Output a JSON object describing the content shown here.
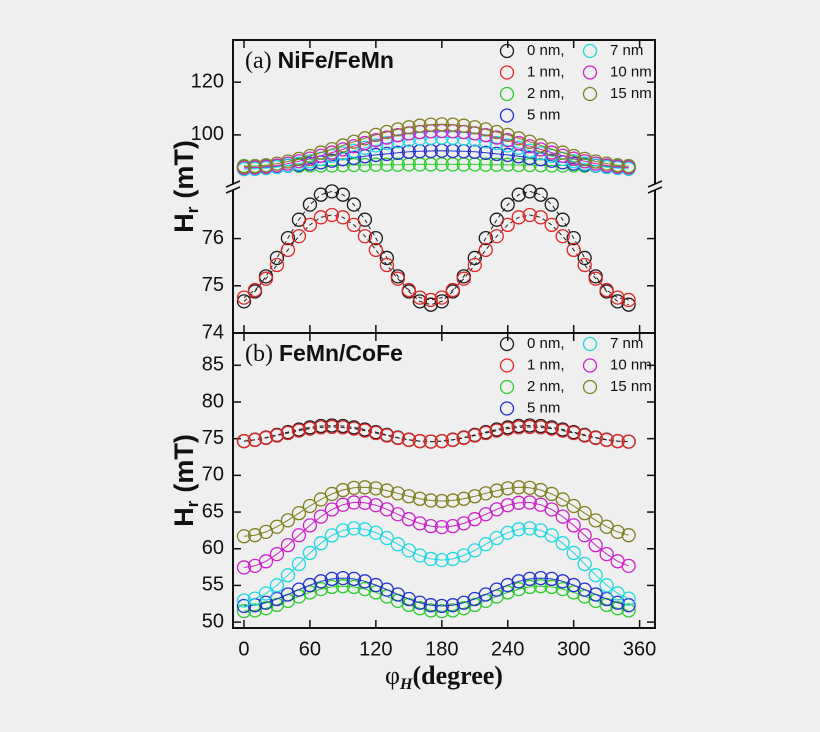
{
  "chart_data": [
    {
      "type": "scatter",
      "label": "(a)",
      "title": "NiFe/FeMn",
      "ylabel": {
        "text": "H",
        "sub": "r",
        "unit": "(mT)"
      },
      "x": [
        0,
        10,
        20,
        30,
        40,
        50,
        60,
        70,
        80,
        90,
        100,
        110,
        120,
        130,
        140,
        150,
        160,
        170,
        180,
        190,
        200,
        210,
        220,
        230,
        240,
        250,
        260,
        270,
        280,
        290,
        300,
        310,
        320,
        330,
        340,
        350
      ],
      "xlim": [
        -10,
        374
      ],
      "xticks": [
        0,
        60,
        120,
        180,
        240,
        300,
        360
      ],
      "ylim": [
        74,
        77.05
      ],
      "yticks": [
        74,
        75,
        76
      ],
      "y2lim": [
        81,
        136
      ],
      "y2ticks": [
        100,
        120
      ],
      "axis_break": true,
      "legend": "upper right",
      "series": [
        {
          "name": "0 nm,",
          "color": "#1a1a1a",
          "values": [
            74.67,
            74.88,
            75.2,
            75.59,
            76.01,
            76.4,
            76.72,
            76.93,
            77,
            76.93,
            76.72,
            76.4,
            76.01,
            75.59,
            75.2,
            74.88,
            74.67,
            74.6,
            74.67,
            74.88,
            75.2,
            75.59,
            76.01,
            76.4,
            76.72,
            76.93,
            77,
            76.93,
            76.72,
            76.4,
            76.01,
            75.59,
            75.2,
            74.88,
            74.67,
            74.6
          ]
        },
        {
          "name": "1 nm,",
          "color": "#e02828",
          "values": [
            74.75,
            74.91,
            75.15,
            75.44,
            75.76,
            76.05,
            76.29,
            76.45,
            76.5,
            76.45,
            76.29,
            76.05,
            75.76,
            75.44,
            75.15,
            74.91,
            74.75,
            74.7,
            74.75,
            74.91,
            75.15,
            75.44,
            75.76,
            76.05,
            76.29,
            76.45,
            76.5,
            76.45,
            76.29,
            76.05,
            75.76,
            75.44,
            75.15,
            74.91,
            74.75,
            74.7
          ]
        },
        {
          "name": "2 nm,",
          "color": "#2ecc2e",
          "axis": "y2",
          "values": [
            88.2,
            88.2,
            88.2,
            88.2,
            88.3,
            88.3,
            88.4,
            88.4,
            88.4,
            88.5,
            88.6,
            88.6,
            88.7,
            88.7,
            88.7,
            88.8,
            88.8,
            88.8,
            88.8,
            88.8,
            88.8,
            88.8,
            88.7,
            88.7,
            88.7,
            88.6,
            88.6,
            88.5,
            88.4,
            88.4,
            88.4,
            88.3,
            88.3,
            88.2,
            88.2,
            88.2
          ]
        },
        {
          "name": "5 nm",
          "color": "#2233cc",
          "axis": "y2",
          "values": [
            87.5,
            87.6,
            87.7,
            87.9,
            88.3,
            88.7,
            89.1,
            89.6,
            90.2,
            90.8,
            91.3,
            91.9,
            92.4,
            92.8,
            93.2,
            93.6,
            93.8,
            93.9,
            94,
            93.9,
            93.8,
            93.6,
            93.2,
            92.8,
            92.4,
            91.9,
            91.3,
            90.8,
            90.2,
            89.6,
            89.1,
            88.7,
            88.3,
            87.9,
            87.7,
            87.6
          ]
        },
        {
          "name": "7 nm",
          "color": "#22d8e0",
          "axis": "y2",
          "values": [
            87,
            87.1,
            87.4,
            87.8,
            88.4,
            89.1,
            90,
            90.9,
            92,
            93,
            94,
            95.1,
            96,
            96.9,
            97.6,
            98.2,
            98.6,
            98.9,
            99,
            98.9,
            98.6,
            98.2,
            97.6,
            96.9,
            96,
            95.1,
            94,
            93,
            92,
            90.9,
            90,
            89.1,
            88.4,
            87.8,
            87.4,
            87.1
          ]
        },
        {
          "name": "10 nm",
          "color": "#cc22cc",
          "axis": "y2",
          "values": [
            87.5,
            87.6,
            87.9,
            88.4,
            89.1,
            90,
            91,
            92.1,
            93.3,
            94.5,
            95.7,
            96.9,
            98,
            99,
            99.9,
            100.6,
            101.1,
            101.4,
            101.5,
            101.4,
            101.1,
            100.6,
            99.9,
            99,
            98,
            96.9,
            95.7,
            94.5,
            93.3,
            92.1,
            91,
            90,
            89.1,
            88.4,
            87.9,
            87.6
          ]
        },
        {
          "name": "15 nm",
          "color": "#808022",
          "axis": "y2",
          "values": [
            88,
            88.1,
            88.5,
            89.1,
            89.9,
            90.9,
            92,
            93.3,
            94.6,
            96,
            97.4,
            98.7,
            100,
            101.1,
            102.1,
            102.9,
            103.5,
            103.9,
            104,
            103.9,
            103.5,
            102.9,
            102.1,
            101.1,
            100,
            98.7,
            97.4,
            96,
            94.6,
            93.3,
            92,
            90.9,
            89.9,
            89.1,
            88.5,
            88.1
          ]
        }
      ]
    },
    {
      "type": "scatter",
      "label": "(b)",
      "title": "FeMn/CoFe",
      "ylabel": {
        "text": "H",
        "sub": "r",
        "unit": "(mT)"
      },
      "xlabel": {
        "text": "φ",
        "sub": "H",
        "unit": "(degree)"
      },
      "x": [
        0,
        10,
        20,
        30,
        40,
        50,
        60,
        70,
        80,
        90,
        100,
        110,
        120,
        130,
        140,
        150,
        160,
        170,
        180,
        190,
        200,
        210,
        220,
        230,
        240,
        250,
        260,
        270,
        280,
        290,
        300,
        310,
        320,
        330,
        340,
        350
      ],
      "xlim": [
        -10,
        374
      ],
      "xticks": [
        0,
        60,
        120,
        180,
        240,
        300,
        360
      ],
      "ylim": [
        49.2,
        89.4
      ],
      "yticks": [
        50,
        55,
        60,
        65,
        70,
        75,
        80,
        85
      ],
      "legend": "upper right",
      "series": [
        {
          "name": "0 nm,",
          "color": "#1a1a1a",
          "values": [
            74.67,
            74.86,
            75.15,
            75.51,
            75.89,
            76.25,
            76.54,
            76.73,
            76.8,
            76.73,
            76.54,
            76.25,
            75.89,
            75.51,
            75.15,
            74.86,
            74.67,
            74.6,
            74.67,
            74.86,
            75.15,
            75.51,
            75.89,
            76.25,
            76.54,
            76.73,
            76.8,
            76.73,
            76.54,
            76.25,
            75.89,
            75.51,
            75.15,
            74.86,
            74.67,
            74.6
          ]
        },
        {
          "name": "1 nm,",
          "color": "#e02828",
          "values": [
            74.66,
            74.83,
            75.1,
            75.43,
            75.77,
            76.1,
            76.37,
            76.54,
            76.6,
            76.54,
            76.37,
            76.1,
            75.77,
            75.43,
            75.1,
            74.83,
            74.66,
            74.6,
            74.66,
            74.83,
            75.1,
            75.43,
            75.77,
            76.1,
            76.37,
            76.54,
            76.6,
            76.54,
            76.37,
            76.1,
            75.77,
            75.43,
            75.1,
            74.83,
            74.66,
            74.6
          ]
        },
        {
          "name": "2 nm,",
          "color": "#2ecc2e",
          "values": [
            51.5,
            51.6,
            51.9,
            52.35,
            52.9,
            53.5,
            54.05,
            54.5,
            54.8,
            54.9,
            54.8,
            54.5,
            54.05,
            53.5,
            52.9,
            52.35,
            51.9,
            51.6,
            51.5,
            51.6,
            51.9,
            52.35,
            52.9,
            53.5,
            54.05,
            54.5,
            54.8,
            54.9,
            54.8,
            54.5,
            54.05,
            53.5,
            52.9,
            52.35,
            51.9,
            51.6
          ]
        },
        {
          "name": "5 nm",
          "color": "#2233cc",
          "values": [
            52.2,
            52.31,
            52.64,
            53.15,
            53.77,
            54.43,
            55.05,
            55.56,
            55.89,
            56,
            55.89,
            55.56,
            55.05,
            54.43,
            53.77,
            53.15,
            52.64,
            52.31,
            52.2,
            52.31,
            52.64,
            53.15,
            53.77,
            54.43,
            55.05,
            55.56,
            55.89,
            56,
            55.89,
            55.56,
            55.05,
            54.43,
            53.77,
            53.15,
            52.64,
            52.31
          ]
        },
        {
          "name": "7 nm",
          "color": "#22d8e0",
          "values": [
            52.95,
            53.2,
            53.91,
            55.02,
            56.4,
            57.92,
            59.43,
            60.76,
            61.82,
            62.5,
            62.78,
            62.65,
            62.18,
            61.46,
            60.62,
            59.78,
            59.08,
            58.61,
            58.45,
            58.61,
            59.08,
            59.78,
            60.62,
            61.46,
            62.18,
            62.65,
            62.78,
            62.5,
            61.82,
            60.76,
            59.43,
            57.92,
            56.4,
            55.02,
            53.91,
            53.2
          ]
        },
        {
          "name": "10 nm",
          "color": "#cc22cc",
          "values": [
            57.45,
            57.67,
            58.29,
            59.27,
            60.49,
            61.84,
            63.18,
            64.38,
            65.35,
            66,
            66.31,
            66.26,
            65.93,
            65.37,
            64.7,
            64.03,
            63.46,
            63.08,
            62.95,
            63.08,
            63.46,
            64.03,
            64.7,
            65.37,
            65.93,
            66.26,
            66.31,
            66,
            65.35,
            64.38,
            63.18,
            61.84,
            60.49,
            59.27,
            58.29,
            57.67
          ]
        },
        {
          "name": "15 nm",
          "color": "#808022",
          "values": [
            61.7,
            61.85,
            62.3,
            63,
            63.87,
            64.85,
            65.83,
            66.72,
            67.47,
            68,
            68.3,
            68.37,
            68.23,
            67.93,
            67.55,
            67.15,
            66.81,
            66.58,
            66.5,
            66.58,
            66.81,
            67.15,
            67.55,
            67.93,
            68.23,
            68.37,
            68.3,
            68,
            67.47,
            66.72,
            65.83,
            64.85,
            63.87,
            63,
            62.3,
            61.85
          ]
        }
      ]
    }
  ]
}
